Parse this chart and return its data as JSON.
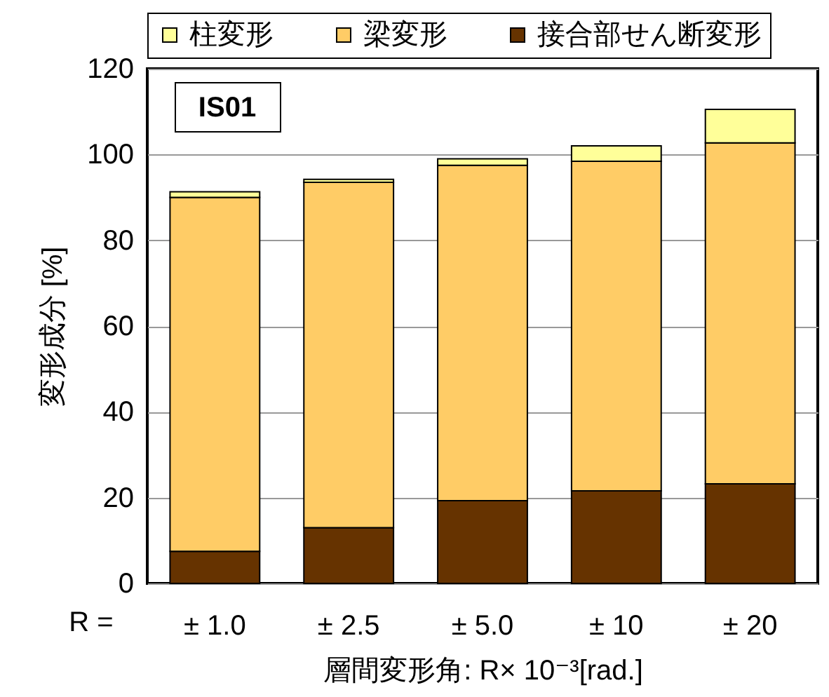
{
  "chart_data": {
    "type": "bar",
    "stacked": true,
    "categories": [
      "± 1.0",
      "± 2.5",
      "± 5.0",
      "± 10",
      "± 20"
    ],
    "series": [
      {
        "name": "接合部せん断変形",
        "color": "#663300",
        "values": [
          7.5,
          13,
          19.3,
          21.6,
          23.2
        ]
      },
      {
        "name": "梁変形",
        "color": "#ffcc66",
        "values": [
          82.5,
          80.5,
          78.2,
          76.8,
          79.5
        ]
      },
      {
        "name": "柱変形",
        "color": "#ffff99",
        "values": [
          1.3,
          0.7,
          1.5,
          3.6,
          7.8
        ]
      }
    ],
    "xlabel": "層間変形角: R× 10⁻³[rad.]",
    "ylabel": "変形成分 [%]",
    "ylim": [
      0,
      120
    ],
    "yticks": [
      0,
      20,
      40,
      60,
      80,
      100,
      120
    ],
    "grid": "y",
    "legend": "top",
    "annotations": [
      "IS01",
      "R ="
    ]
  }
}
